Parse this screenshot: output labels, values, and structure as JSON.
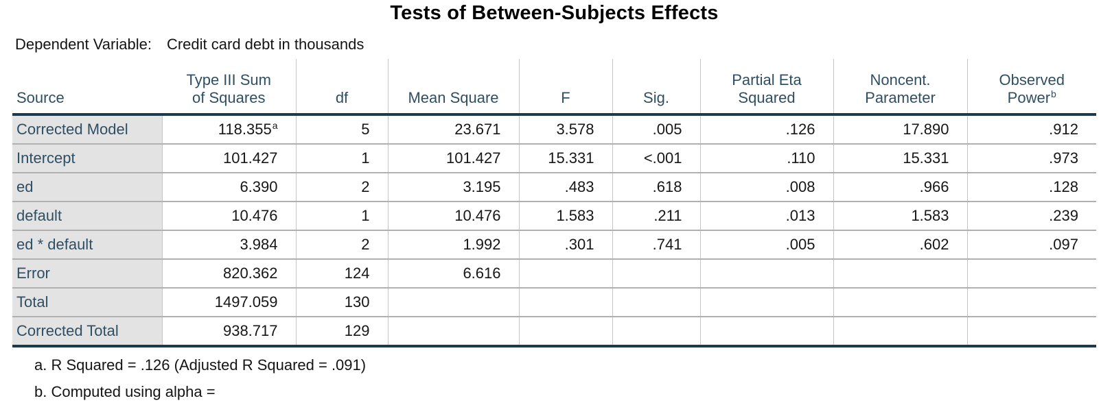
{
  "title": "Tests of Between-Subjects Effects",
  "dependent_variable": {
    "label": "Dependent Variable:",
    "value": "Credit card debt in thousands"
  },
  "table": {
    "columns": [
      {
        "id": "source",
        "label_lines": [
          "Source"
        ]
      },
      {
        "id": "type-iii-sum-of-squares",
        "label_lines": [
          "Type III Sum",
          "of Squares"
        ]
      },
      {
        "id": "df",
        "label_lines": [
          "df"
        ]
      },
      {
        "id": "mean-square",
        "label_lines": [
          "Mean Square"
        ]
      },
      {
        "id": "f",
        "label_lines": [
          "F"
        ]
      },
      {
        "id": "sig",
        "label_lines": [
          "Sig."
        ]
      },
      {
        "id": "partial-eta-squared",
        "label_lines": [
          "Partial Eta",
          "Squared"
        ]
      },
      {
        "id": "noncent-parameter",
        "label_lines": [
          "Noncent.",
          "Parameter"
        ]
      },
      {
        "id": "observed-power",
        "label_lines": [
          "Observed",
          "Power"
        ],
        "superscript": "b"
      }
    ],
    "rows": [
      {
        "source": "Corrected Model",
        "values": [
          "118.355",
          "5",
          "23.671",
          "3.578",
          ".005",
          ".126",
          "17.890",
          ".912"
        ],
        "superscripts": {
          "0": "a"
        }
      },
      {
        "source": "Intercept",
        "values": [
          "101.427",
          "1",
          "101.427",
          "15.331",
          "<.001",
          ".110",
          "15.331",
          ".973"
        ]
      },
      {
        "source": "ed",
        "values": [
          "6.390",
          "2",
          "3.195",
          ".483",
          ".618",
          ".008",
          ".966",
          ".128"
        ]
      },
      {
        "source": "default",
        "values": [
          "10.476",
          "1",
          "10.476",
          "1.583",
          ".211",
          ".013",
          "1.583",
          ".239"
        ]
      },
      {
        "source": "ed * default",
        "values": [
          "3.984",
          "2",
          "1.992",
          ".301",
          ".741",
          ".005",
          ".602",
          ".097"
        ]
      },
      {
        "source": "Error",
        "values": [
          "820.362",
          "124",
          "6.616",
          "",
          "",
          "",
          "",
          ""
        ]
      },
      {
        "source": "Total",
        "values": [
          "1497.059",
          "130",
          "",
          "",
          "",
          "",
          "",
          ""
        ]
      },
      {
        "source": "Corrected Total",
        "values": [
          "938.717",
          "129",
          "",
          "",
          "",
          "",
          "",
          ""
        ]
      }
    ]
  },
  "footnotes": [
    "a. R Squared = .126 (Adjusted R Squared = .091)",
    "b. Computed using alpha ="
  ],
  "colors": {
    "header_text": "#2e4f63",
    "data_text": "#161616",
    "thick_border": "#1b3a4b",
    "grid_vertical": "#c6c6c6",
    "grid_horizontal": "#b0b0b0",
    "row_label_bg": "#e3e3e3"
  }
}
